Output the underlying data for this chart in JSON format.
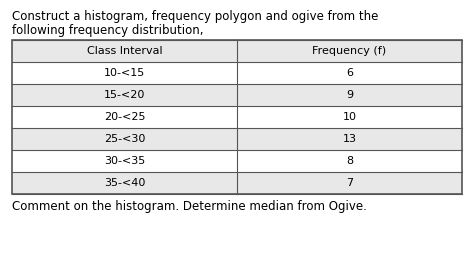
{
  "title_line1": "Construct a histogram, frequency polygon and ogive from the",
  "title_line2": "following frequency distribution,",
  "col1_header": "Class Interval",
  "col2_header": "Frequency (f)",
  "rows": [
    [
      "10-<15",
      "6"
    ],
    [
      "15-<20",
      "9"
    ],
    [
      "20-<25",
      "10"
    ],
    [
      "25-<30",
      "13"
    ],
    [
      "30-<35",
      "8"
    ],
    [
      "35-<40",
      "7"
    ]
  ],
  "footer": "Comment on the histogram. Determine median from Ogive.",
  "bg_color": "#ffffff",
  "text_color": "#000000",
  "border_color": "#555555",
  "header_bg": "#ffffff",
  "row_bg_white": "#ffffff",
  "row_bg_gray": "#e8e8e8",
  "font_size_title": 8.5,
  "font_size_table": 8.0,
  "font_size_footer": 8.5
}
